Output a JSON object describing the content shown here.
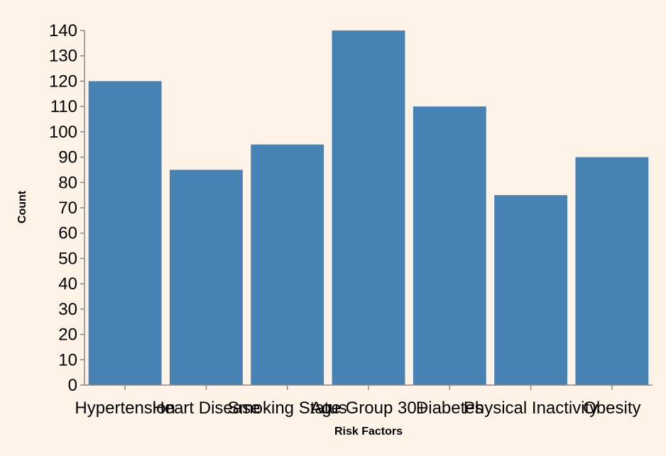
{
  "chart_data": {
    "type": "bar",
    "categories": [
      "Hypertension",
      "Heart Disease",
      "Smoking Status",
      "Age Group 30+",
      "Diabetes",
      "Physical Inactivity",
      "Obesity"
    ],
    "values": [
      120,
      85,
      95,
      140,
      110,
      75,
      90
    ],
    "xlabel": "Risk Factors",
    "ylabel": "Count",
    "ylim": [
      0,
      140
    ],
    "yticks": [
      0,
      10,
      20,
      30,
      40,
      50,
      60,
      70,
      80,
      90,
      100,
      110,
      120,
      130,
      140
    ],
    "grid": false,
    "legend": "none",
    "colors": {
      "background": "#fef3e6",
      "bar": "#4682b4",
      "axis": "#888888"
    }
  }
}
